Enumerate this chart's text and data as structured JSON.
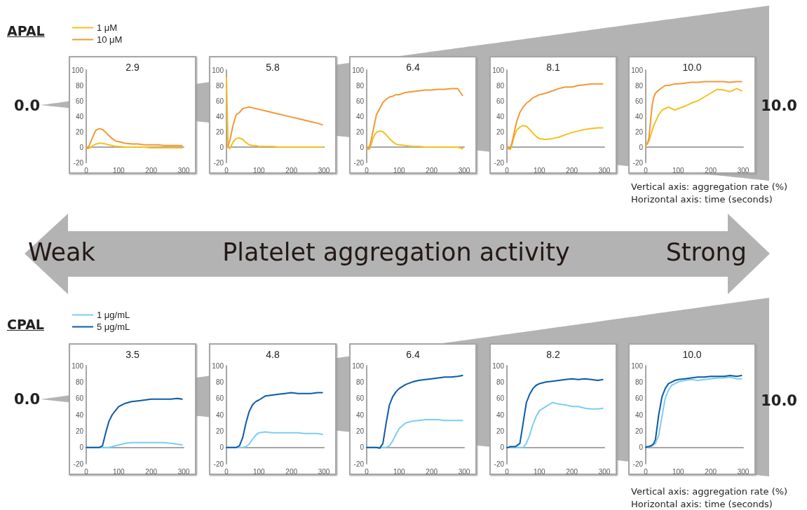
{
  "chart_data": [
    {
      "type": "line",
      "title": "2.9",
      "legend": "top left",
      "marker": "none",
      "line_style": "solid",
      "xlim": [
        0,
        300
      ],
      "xticks": [
        0,
        100,
        200,
        300
      ],
      "ylim": [
        -20,
        100
      ],
      "yticks": [
        -20,
        0,
        20,
        40,
        60,
        80,
        100
      ],
      "annotations": [
        "APAL",
        "0.0",
        "10.0",
        "Vertical axis: aggregation rate (%)",
        "Horizontal axis: time (seconds)"
      ],
      "x": [
        0,
        5,
        10,
        15,
        20,
        25,
        30,
        40,
        50,
        60,
        70,
        80,
        90,
        100,
        120,
        140,
        160,
        180,
        200,
        220,
        240,
        260,
        280,
        295
      ],
      "series": [
        {
          "name": "1 μM",
          "color": "#f5c01c",
          "values": [
            0,
            -2,
            -1,
            0,
            2,
            3,
            4,
            5,
            5,
            4,
            3,
            2,
            1,
            1,
            0,
            0,
            0,
            0,
            -1,
            -1,
            -1,
            -1,
            -1,
            -1
          ]
        },
        {
          "name": "10 μM",
          "color": "#f39836",
          "values": [
            0,
            -1,
            3,
            8,
            13,
            18,
            22,
            24,
            23,
            19,
            15,
            11,
            8,
            7,
            5,
            4,
            4,
            3,
            3,
            3,
            2,
            2,
            2,
            2
          ]
        }
      ]
    },
    {
      "type": "line",
      "title": "5.8",
      "marker": "none",
      "line_style": "solid",
      "xlim": [
        0,
        300
      ],
      "xticks": [
        0,
        100,
        200,
        300
      ],
      "ylim": [
        -20,
        100
      ],
      "yticks": [
        -20,
        0,
        20,
        40,
        60,
        80,
        100
      ],
      "x": [
        0,
        5,
        10,
        15,
        20,
        25,
        30,
        40,
        50,
        60,
        70,
        80,
        90,
        100,
        120,
        140,
        160,
        180,
        200,
        220,
        240,
        260,
        280,
        295
      ],
      "series": [
        {
          "color": "#f5c01c",
          "values": [
            90,
            0,
            -2,
            2,
            6,
            9,
            11,
            12,
            10,
            6,
            3,
            2,
            2,
            1,
            1,
            1,
            0,
            0,
            0,
            0,
            0,
            0,
            0,
            0
          ]
        },
        {
          "color": "#f39836",
          "values": [
            0,
            2,
            8,
            18,
            28,
            35,
            42,
            45,
            50,
            51,
            52,
            51,
            50,
            49,
            47,
            45,
            43,
            41,
            39,
            37,
            35,
            33,
            31,
            29
          ]
        }
      ]
    },
    {
      "type": "line",
      "title": "6.4",
      "marker": "none",
      "line_style": "solid",
      "xlim": [
        0,
        300
      ],
      "xticks": [
        0,
        100,
        200,
        300
      ],
      "ylim": [
        -20,
        100
      ],
      "yticks": [
        -20,
        0,
        20,
        40,
        60,
        80,
        100
      ],
      "x": [
        0,
        5,
        10,
        15,
        20,
        25,
        30,
        40,
        50,
        60,
        70,
        80,
        90,
        100,
        120,
        140,
        160,
        180,
        200,
        220,
        240,
        260,
        280,
        295
      ],
      "series": [
        {
          "color": "#f5c01c",
          "values": [
            0,
            -3,
            -2,
            5,
            12,
            16,
            19,
            21,
            20,
            16,
            11,
            7,
            4,
            3,
            2,
            1,
            1,
            0,
            0,
            0,
            0,
            0,
            0,
            -2
          ]
        },
        {
          "color": "#f39836",
          "values": [
            0,
            -2,
            2,
            12,
            22,
            32,
            42,
            50,
            58,
            62,
            65,
            66,
            68,
            68,
            71,
            72,
            73,
            74,
            74,
            75,
            75,
            76,
            76,
            67
          ]
        }
      ]
    },
    {
      "type": "line",
      "title": "8.1",
      "marker": "none",
      "line_style": "solid",
      "xlim": [
        0,
        300
      ],
      "xticks": [
        0,
        100,
        200,
        300
      ],
      "ylim": [
        -20,
        100
      ],
      "yticks": [
        -20,
        0,
        20,
        40,
        60,
        80,
        100
      ],
      "x": [
        0,
        5,
        10,
        15,
        20,
        25,
        30,
        40,
        50,
        60,
        70,
        80,
        90,
        100,
        120,
        140,
        160,
        180,
        200,
        220,
        240,
        260,
        280,
        295
      ],
      "series": [
        {
          "color": "#f5c01c",
          "values": [
            0,
            -2,
            -3,
            2,
            10,
            17,
            22,
            26,
            28,
            27,
            23,
            18,
            14,
            11,
            10,
            11,
            13,
            16,
            19,
            21,
            23,
            24,
            25,
            25
          ]
        },
        {
          "color": "#f39836",
          "values": [
            0,
            -2,
            -2,
            5,
            14,
            24,
            33,
            45,
            52,
            57,
            60,
            64,
            66,
            68,
            70,
            73,
            76,
            78,
            78,
            80,
            81,
            82,
            82,
            82
          ]
        }
      ]
    },
    {
      "type": "line",
      "title": "10.0",
      "marker": "none",
      "line_style": "solid",
      "xlim": [
        0,
        300
      ],
      "xticks": [
        0,
        100,
        200,
        300
      ],
      "ylim": [
        -20,
        100
      ],
      "yticks": [
        -20,
        0,
        20,
        40,
        60,
        80,
        100
      ],
      "x": [
        0,
        5,
        10,
        15,
        20,
        25,
        30,
        40,
        50,
        60,
        70,
        80,
        90,
        100,
        120,
        140,
        160,
        180,
        200,
        220,
        240,
        260,
        280,
        295
      ],
      "series": [
        {
          "color": "#f5c01c",
          "values": [
            2,
            4,
            8,
            15,
            22,
            28,
            33,
            42,
            48,
            50,
            52,
            50,
            48,
            50,
            53,
            57,
            60,
            65,
            70,
            75,
            74,
            72,
            76,
            73
          ]
        },
        {
          "color": "#f39836",
          "values": [
            2,
            5,
            12,
            35,
            55,
            65,
            70,
            74,
            77,
            80,
            80,
            81,
            82,
            82,
            83,
            84,
            84,
            85,
            85,
            85,
            85,
            84,
            85,
            85
          ]
        }
      ]
    },
    {
      "type": "line",
      "title": "3.5",
      "legend": "top left",
      "marker": "none",
      "line_style": "solid",
      "xlim": [
        0,
        300
      ],
      "xticks": [
        0,
        100,
        200,
        300
      ],
      "ylim": [
        -20,
        100
      ],
      "yticks": [
        -20,
        0,
        20,
        40,
        60,
        80,
        100
      ],
      "annotations": [
        "CPAL",
        "0.0",
        "10.0",
        "Vertical axis: aggregation rate (%)",
        "Horizontal axis: time (seconds)"
      ],
      "x": [
        0,
        5,
        10,
        15,
        20,
        25,
        30,
        40,
        50,
        60,
        70,
        80,
        90,
        100,
        120,
        140,
        160,
        180,
        200,
        220,
        240,
        260,
        280,
        295
      ],
      "series": [
        {
          "name": "1 μg/mL",
          "color": "#7ccdf2",
          "values": [
            0,
            0,
            0,
            0,
            0,
            0,
            0,
            0,
            0,
            0,
            0,
            1,
            2,
            3,
            5,
            6,
            6,
            6,
            6,
            6,
            6,
            5,
            4,
            3
          ]
        },
        {
          "name": "5 μg/mL",
          "color": "#0b5aa8",
          "values": [
            0,
            0,
            0,
            0,
            0,
            0,
            0,
            0,
            2,
            18,
            32,
            40,
            45,
            50,
            54,
            56,
            57,
            58,
            59,
            59,
            59,
            59,
            60,
            59
          ]
        }
      ]
    },
    {
      "type": "line",
      "title": "4.8",
      "marker": "none",
      "line_style": "solid",
      "xlim": [
        0,
        300
      ],
      "xticks": [
        0,
        100,
        200,
        300
      ],
      "ylim": [
        -20,
        100
      ],
      "yticks": [
        -20,
        0,
        20,
        40,
        60,
        80,
        100
      ],
      "x": [
        0,
        5,
        10,
        15,
        20,
        25,
        30,
        40,
        50,
        60,
        70,
        80,
        90,
        100,
        120,
        140,
        160,
        180,
        200,
        220,
        240,
        260,
        280,
        295
      ],
      "series": [
        {
          "color": "#7ccdf2",
          "values": [
            0,
            0,
            0,
            0,
            0,
            0,
            0,
            0,
            0,
            1,
            4,
            10,
            15,
            18,
            19,
            18,
            18,
            18,
            18,
            18,
            17,
            17,
            17,
            16
          ]
        },
        {
          "color": "#0b5aa8",
          "values": [
            0,
            0,
            0,
            0,
            0,
            0,
            0,
            2,
            12,
            30,
            44,
            52,
            56,
            58,
            63,
            64,
            65,
            66,
            67,
            66,
            66,
            66,
            67,
            67
          ]
        }
      ]
    },
    {
      "type": "line",
      "title": "6.4",
      "marker": "none",
      "line_style": "solid",
      "xlim": [
        0,
        300
      ],
      "xticks": [
        0,
        100,
        200,
        300
      ],
      "ylim": [
        -20,
        100
      ],
      "yticks": [
        -20,
        0,
        20,
        40,
        60,
        80,
        100
      ],
      "x": [
        0,
        5,
        10,
        15,
        20,
        25,
        30,
        40,
        50,
        60,
        70,
        80,
        90,
        100,
        120,
        140,
        160,
        180,
        200,
        220,
        240,
        260,
        280,
        295
      ],
      "series": [
        {
          "color": "#7ccdf2",
          "values": [
            0,
            0,
            0,
            0,
            0,
            0,
            0,
            0,
            0,
            0,
            2,
            8,
            16,
            23,
            30,
            32,
            33,
            34,
            34,
            34,
            33,
            33,
            33,
            33
          ]
        },
        {
          "color": "#0b5aa8",
          "values": [
            0,
            0,
            0,
            0,
            0,
            0,
            0,
            -1,
            5,
            30,
            52,
            62,
            68,
            72,
            77,
            80,
            82,
            83,
            84,
            85,
            86,
            86,
            87,
            88
          ]
        }
      ]
    },
    {
      "type": "line",
      "title": "8.2",
      "marker": "none",
      "line_style": "solid",
      "xlim": [
        0,
        300
      ],
      "xticks": [
        0,
        100,
        200,
        300
      ],
      "ylim": [
        -20,
        100
      ],
      "yticks": [
        -20,
        0,
        20,
        40,
        60,
        80,
        100
      ],
      "x": [
        0,
        5,
        10,
        15,
        20,
        25,
        30,
        40,
        50,
        60,
        70,
        80,
        90,
        100,
        120,
        140,
        160,
        180,
        200,
        220,
        240,
        260,
        280,
        295
      ],
      "series": [
        {
          "color": "#7ccdf2",
          "values": [
            0,
            0,
            0,
            0,
            0,
            0,
            0,
            0,
            0,
            5,
            15,
            28,
            38,
            45,
            50,
            55,
            53,
            52,
            50,
            50,
            48,
            47,
            47,
            48
          ]
        },
        {
          "color": "#0b5aa8",
          "values": [
            0,
            0,
            1,
            1,
            1,
            1,
            2,
            5,
            30,
            55,
            65,
            72,
            76,
            78,
            80,
            81,
            82,
            83,
            84,
            83,
            84,
            83,
            82,
            83
          ]
        }
      ]
    },
    {
      "type": "line",
      "title": "10.0",
      "marker": "none",
      "line_style": "solid",
      "xlim": [
        0,
        300
      ],
      "xticks": [
        0,
        100,
        200,
        300
      ],
      "ylim": [
        -20,
        100
      ],
      "yticks": [
        -20,
        0,
        20,
        40,
        60,
        80,
        100
      ],
      "x": [
        0,
        5,
        10,
        15,
        20,
        25,
        30,
        40,
        50,
        60,
        70,
        80,
        90,
        100,
        120,
        140,
        160,
        180,
        200,
        220,
        240,
        260,
        280,
        295
      ],
      "series": [
        {
          "color": "#7ccdf2",
          "values": [
            0,
            0,
            1,
            1,
            2,
            3,
            5,
            15,
            38,
            60,
            70,
            76,
            78,
            80,
            82,
            83,
            82,
            83,
            84,
            85,
            85,
            86,
            84,
            84
          ]
        },
        {
          "color": "#0b5aa8",
          "values": [
            0,
            1,
            1,
            2,
            3,
            5,
            10,
            40,
            62,
            72,
            78,
            80,
            82,
            83,
            84,
            85,
            86,
            86,
            87,
            87,
            87,
            88,
            87,
            88
          ]
        }
      ]
    },
    {
      "type": "other",
      "annotations": [
        "Weak",
        "Platelet aggregation activity",
        "Strong"
      ]
    }
  ]
}
